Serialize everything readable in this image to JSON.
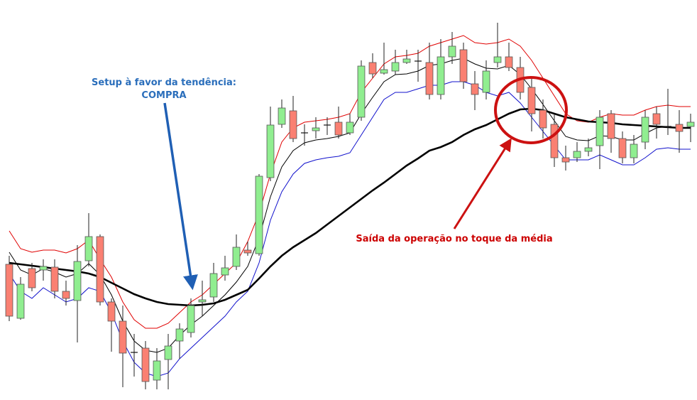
{
  "chart_data": {
    "type": "candlestick",
    "ylim": [
      0,
      563
    ],
    "up_color": "#90ee90",
    "down_color": "#fa8072",
    "open": [
      191,
      115,
      185,
      183,
      187,
      153,
      140,
      196,
      230,
      138,
      111,
      67,
      73,
      28,
      57,
      83,
      95,
      138,
      145,
      176,
      188,
      211,
      206,
      313,
      388,
      407,
      376,
      379,
      387,
      391,
      376,
      398,
      475,
      460,
      463,
      475,
      477,
      475,
      430,
      483,
      493,
      445,
      433,
      475,
      483,
      468,
      440,
      408,
      388,
      341,
      341,
      350,
      358,
      403,
      368,
      341,
      363,
      403,
      385,
      388,
      385
    ],
    "high": [
      203,
      173,
      193,
      198,
      198,
      168,
      218,
      263,
      233,
      143,
      133,
      93,
      83,
      73,
      93,
      108,
      143,
      168,
      193,
      203,
      233,
      223,
      318,
      413,
      423,
      428,
      388,
      398,
      398,
      413,
      403,
      478,
      488,
      503,
      493,
      493,
      493,
      503,
      508,
      518,
      503,
      463,
      478,
      531,
      503,
      483,
      453,
      423,
      403,
      358,
      363,
      368,
      408,
      408,
      378,
      373,
      408,
      413,
      438,
      408,
      403
    ],
    "low": [
      111,
      113,
      153,
      168,
      143,
      133,
      81,
      188,
      133,
      68,
      18,
      33,
      15,
      15,
      15,
      58,
      88,
      118,
      138,
      168,
      183,
      203,
      203,
      308,
      383,
      363,
      358,
      368,
      373,
      368,
      373,
      393,
      453,
      458,
      458,
      473,
      448,
      423,
      423,
      473,
      438,
      408,
      423,
      468,
      463,
      423,
      378,
      368,
      328,
      323,
      335,
      343,
      325,
      348,
      333,
      333,
      353,
      368,
      373,
      348,
      363
    ],
    "close": [
      118,
      163,
      158,
      188,
      153,
      143,
      195,
      230,
      138,
      111,
      66,
      67,
      26,
      55,
      76,
      100,
      133,
      141,
      178,
      186,
      215,
      207,
      315,
      387,
      411,
      368,
      376,
      383,
      387,
      373,
      391,
      470,
      459,
      465,
      475,
      480,
      477,
      430,
      483,
      498,
      448,
      430,
      463,
      483,
      468,
      433,
      403,
      383,
      341,
      335,
      350,
      355,
      398,
      368,
      341,
      360,
      398,
      388,
      385,
      378,
      391
    ],
    "lines": [
      {
        "color": "#e00000",
        "values": [
          238,
          213,
          208,
          211,
          211,
          207,
          213,
          225,
          198,
          173,
          138,
          113,
          101,
          101,
          108,
          123,
          138,
          148,
          163,
          178,
          193,
          223,
          263,
          318,
          363,
          383,
          391,
          393,
          395,
          398,
          403,
          433,
          453,
          473,
          483,
          485,
          488,
          498,
          503,
          508,
          513,
          503,
          501,
          503,
          508,
          498,
          478,
          453,
          428,
          403,
          393,
          391,
          398,
          403,
          401,
          401,
          408,
          413,
          415,
          413,
          413
        ]
      },
      {
        "color": "#000000",
        "values": [
          208,
          183,
          176,
          185,
          180,
          173,
          178,
          192,
          176,
          148,
          111,
          83,
          70,
          67,
          73,
          91,
          106,
          118,
          133,
          148,
          166,
          188,
          228,
          286,
          328,
          351,
          362,
          366,
          368,
          371,
          376,
          403,
          426,
          448,
          458,
          459,
          463,
          471,
          473,
          478,
          481,
          473,
          467,
          466,
          471,
          458,
          438,
          416,
          393,
          371,
          366,
          365,
          372,
          371,
          366,
          366,
          375,
          383,
          385,
          383,
          383
        ]
      },
      {
        "color": "#1010cc",
        "values": [
          178,
          153,
          143,
          158,
          148,
          138,
          143,
          158,
          153,
          123,
          83,
          53,
          38,
          33,
          38,
          58,
          73,
          88,
          103,
          118,
          138,
          153,
          193,
          253,
          293,
          318,
          333,
          338,
          341,
          343,
          348,
          373,
          398,
          423,
          433,
          433,
          438,
          443,
          443,
          448,
          448,
          443,
          433,
          428,
          433,
          418,
          398,
          378,
          358,
          338,
          338,
          338,
          345,
          338,
          331,
          331,
          341,
          353,
          355,
          353,
          353
        ]
      },
      {
        "color": "#000000",
        "values": [
          193,
          191,
          189,
          187,
          185,
          183,
          181,
          178,
          173,
          165,
          157,
          149,
          143,
          138,
          135,
          134,
          133,
          134,
          136,
          141,
          148,
          155,
          171,
          188,
          203,
          215,
          225,
          235,
          247,
          259,
          271,
          283,
          295,
          306,
          318,
          330,
          340,
          351,
          356,
          363,
          373,
          381,
          387,
          395,
          403,
          409,
          410,
          408,
          403,
          398,
          395,
          392,
          391,
          390,
          388,
          387,
          386,
          385,
          384,
          383,
          383
        ]
      }
    ],
    "annotations": [
      {
        "text": "Setup à favor da tendência:",
        "color": "#2a6ebb"
      },
      {
        "text": "COMPRA",
        "color": "#2a6ebb"
      },
      {
        "text": "Saída da operação no toque da média",
        "color": "#cc0000"
      }
    ]
  }
}
